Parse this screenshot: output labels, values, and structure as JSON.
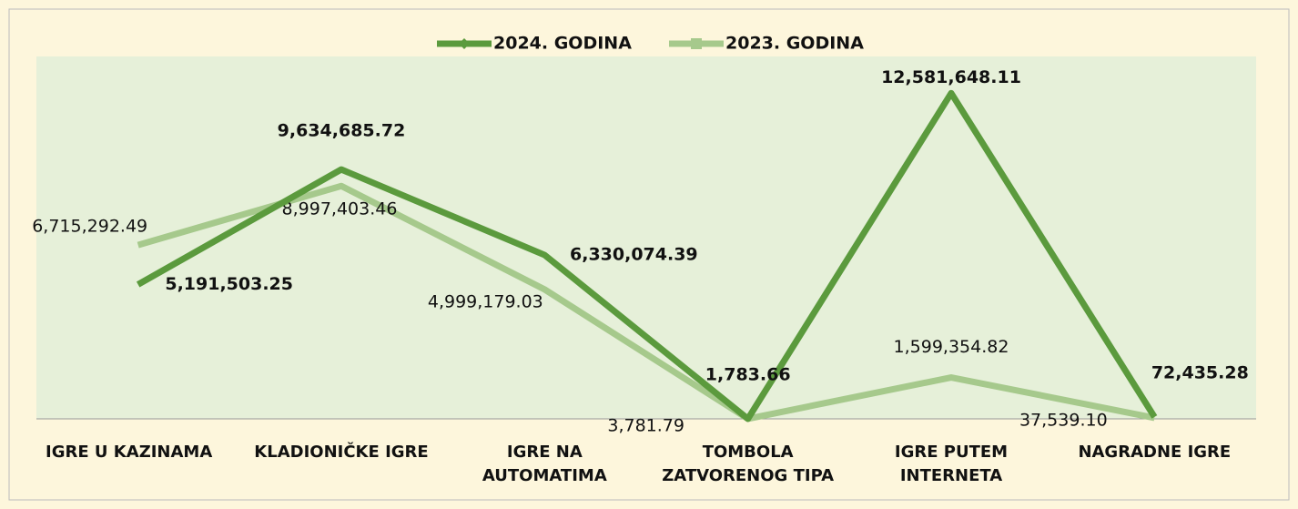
{
  "chart_data": {
    "type": "line",
    "categories": [
      "IGRE U KAZINAMA",
      "KLADIONIČKE IGRE",
      "IGRE NA\nAUTOMATIMA",
      "TOMBOLA\nZATVORENOG TIPA",
      "IGRE PUTEM\nINTERNETA",
      "NAGRADNE IGRE"
    ],
    "series": [
      {
        "name": "2024. GODINA",
        "color": "#5b9a3d",
        "values": [
          5191503.25,
          9634685.72,
          6330074.39,
          1783.66,
          12581648.11,
          72435.28
        ],
        "value_labels": [
          "5,191,503.25",
          "9,634,685.72",
          "6,330,074.39",
          "1,783.66",
          "12,581,648.11",
          "72,435.28"
        ]
      },
      {
        "name": "2023. GODINA",
        "color": "#a6c98c",
        "values": [
          6715292.49,
          8997403.46,
          4999179.03,
          3781.79,
          1599354.82,
          37539.1
        ],
        "value_labels": [
          "6,715,292.49",
          "8,997,403.46",
          "4,999,179.03",
          "3,781.79",
          "1,599,354.82",
          "37,539.10"
        ]
      }
    ],
    "ylim": [
      0,
      14000000
    ]
  }
}
